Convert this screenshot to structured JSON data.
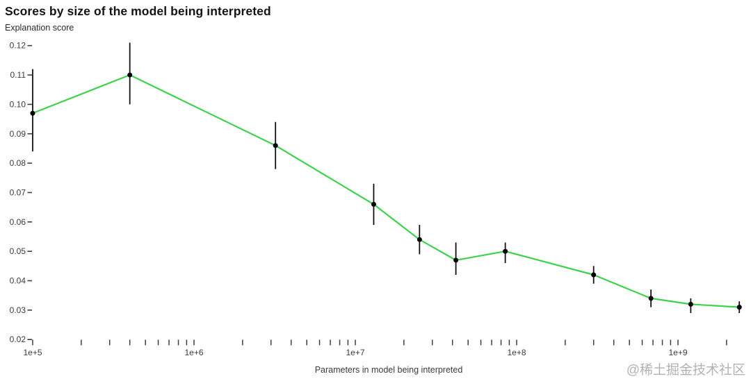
{
  "page": {
    "watermark": "@稀土掘金技术社区"
  },
  "chart_data": {
    "type": "line",
    "title": "Scores by size of the model being interpreted",
    "ylabel": "Explanation score",
    "xlabel": "Parameters in model being interpreted",
    "x_scale": "log",
    "grid": false,
    "legend": "none",
    "xlim": [
      100000,
      2600000000
    ],
    "ylim": [
      0.02,
      0.12
    ],
    "y_ticks": [
      0.02,
      0.03,
      0.04,
      0.05,
      0.06,
      0.07,
      0.08,
      0.09,
      0.1,
      0.11,
      0.12
    ],
    "x_major_ticks": [
      {
        "value": 100000,
        "label": "1e+5"
      },
      {
        "value": 1000000,
        "label": "1e+6"
      },
      {
        "value": 10000000,
        "label": "1e+7"
      },
      {
        "value": 100000000,
        "label": "1e+8"
      },
      {
        "value": 1000000000,
        "label": "1e+9"
      }
    ],
    "colors": {
      "line": "#3dd24c",
      "marker": "#000000",
      "error_bar": "#111111",
      "tick": "#3d3d3d",
      "text": "#3b3b3b",
      "watermark": "#b2b2b2"
    },
    "series": [
      {
        "name": "Explanation score",
        "points": [
          {
            "x": 100000,
            "y": 0.097,
            "lo": 0.084,
            "hi": 0.112
          },
          {
            "x": 400000,
            "y": 0.11,
            "lo": 0.1,
            "hi": 0.121
          },
          {
            "x": 3200000,
            "y": 0.086,
            "lo": 0.078,
            "hi": 0.094
          },
          {
            "x": 13000000,
            "y": 0.066,
            "lo": 0.059,
            "hi": 0.073
          },
          {
            "x": 25000000,
            "y": 0.054,
            "lo": 0.049,
            "hi": 0.059
          },
          {
            "x": 42000000,
            "y": 0.047,
            "lo": 0.042,
            "hi": 0.053
          },
          {
            "x": 85000000,
            "y": 0.05,
            "lo": 0.046,
            "hi": 0.053
          },
          {
            "x": 300000000,
            "y": 0.042,
            "lo": 0.039,
            "hi": 0.045
          },
          {
            "x": 680000000,
            "y": 0.034,
            "lo": 0.031,
            "hi": 0.037
          },
          {
            "x": 1200000000,
            "y": 0.032,
            "lo": 0.029,
            "hi": 0.034
          },
          {
            "x": 2400000000,
            "y": 0.031,
            "lo": 0.029,
            "hi": 0.033
          }
        ]
      }
    ]
  }
}
